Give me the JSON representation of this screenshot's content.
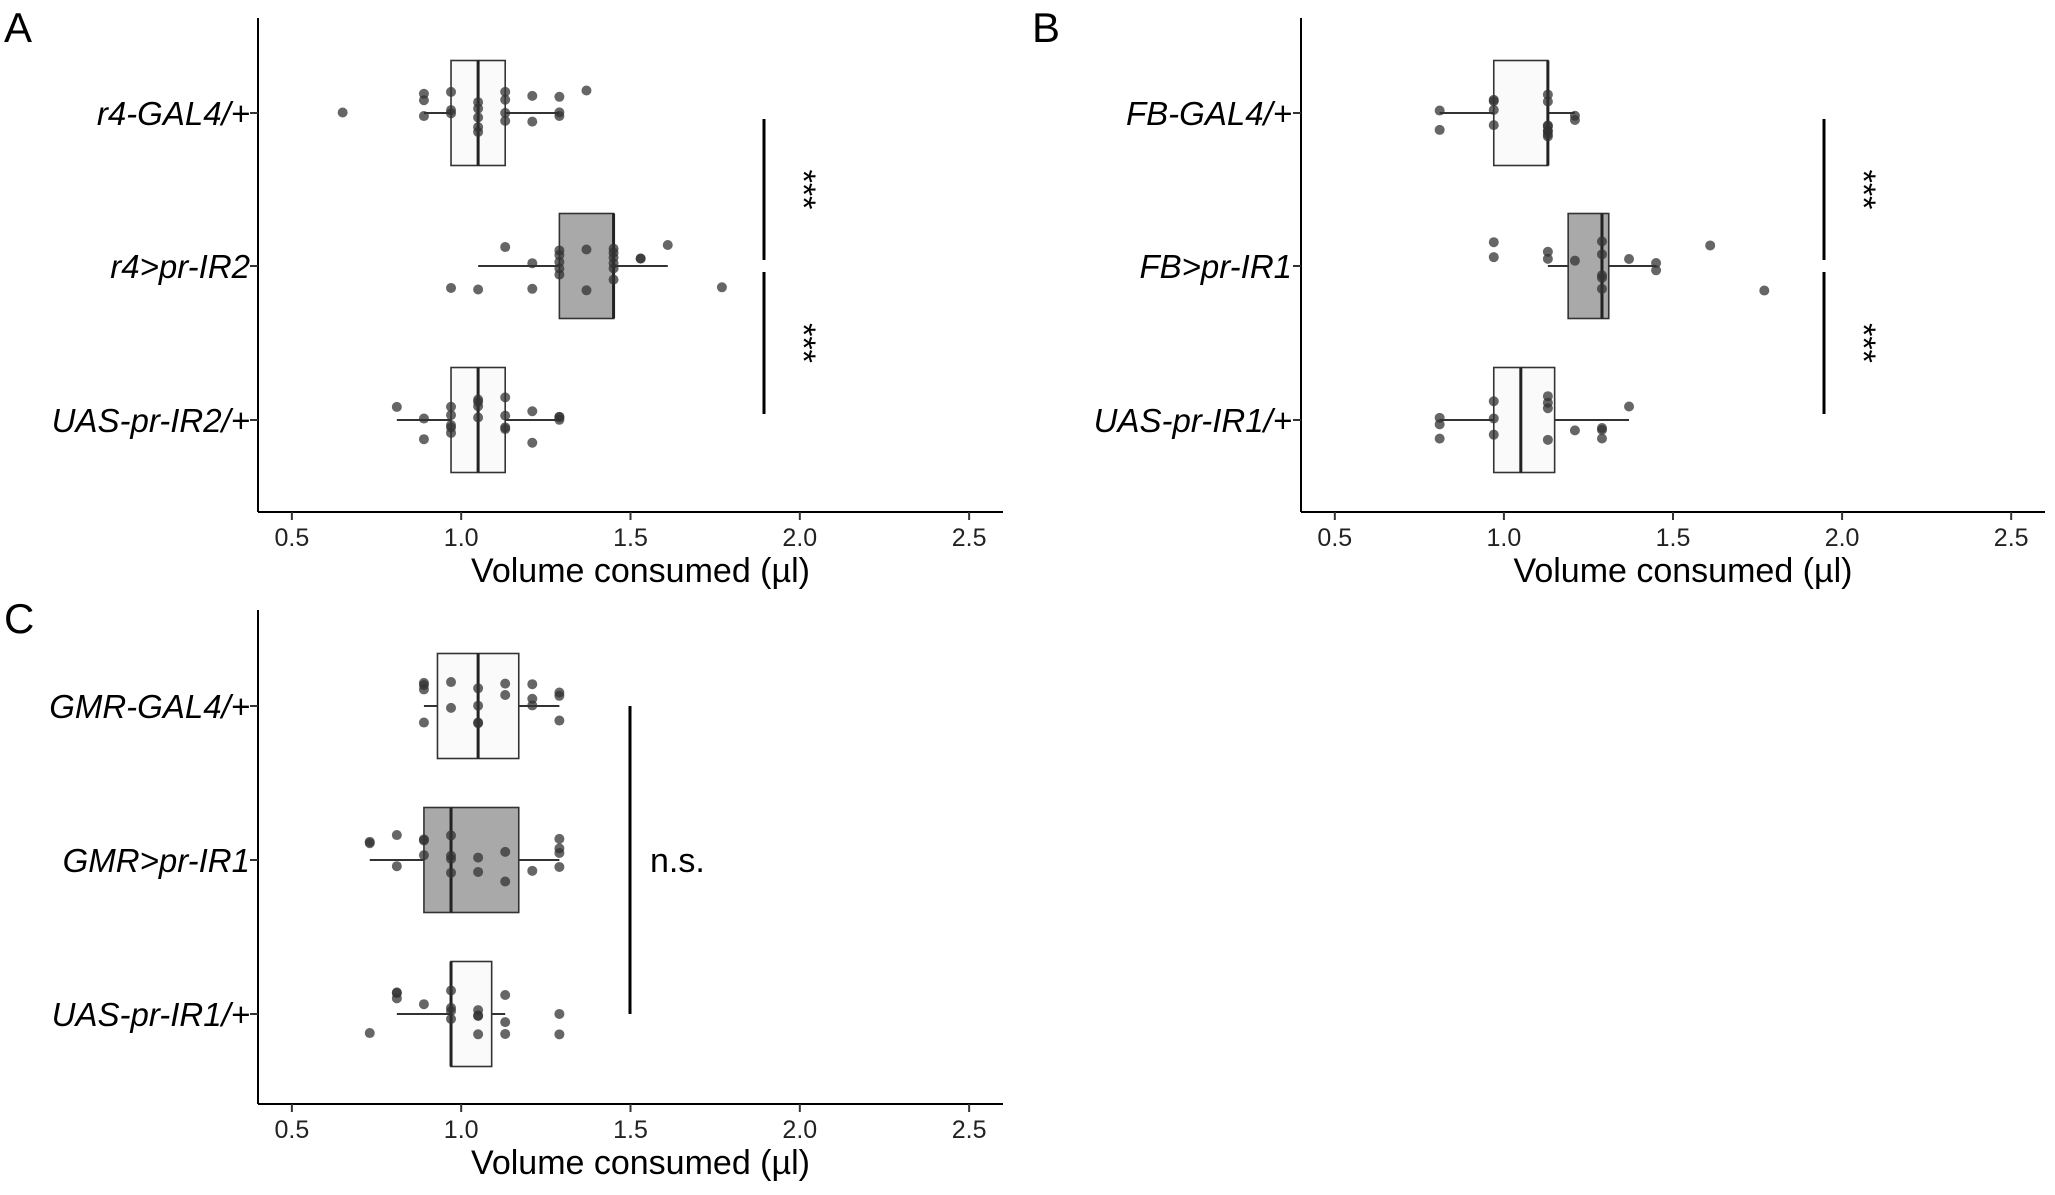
{
  "chart_data": [
    {
      "panel": "A",
      "type": "box",
      "xlabel": "Volume consumed (µl)",
      "xlim": [
        0.4,
        2.6
      ],
      "xticks": [
        0.5,
        1.0,
        1.5,
        2.0,
        2.5
      ],
      "xtick_labels": [
        "0.5",
        "1.0",
        "1.5",
        "2.0",
        "2.5"
      ],
      "grid": false,
      "groups": [
        {
          "label": "r4-GAL4/+",
          "fill": "#fafafa",
          "q1": 0.97,
          "median": 1.05,
          "q3": 1.13,
          "whisker_low": 0.89,
          "whisker_high": 1.29,
          "points": [
            0.65,
            0.89,
            0.89,
            0.89,
            0.97,
            0.97,
            0.97,
            1.05,
            1.05,
            1.05,
            1.05,
            1.05,
            1.13,
            1.13,
            1.13,
            1.13,
            1.21,
            1.21,
            1.29,
            1.29,
            1.29,
            1.37
          ]
        },
        {
          "label": "r4>pr-IR2",
          "fill": "#a9a9a9",
          "q1": 1.29,
          "median": 1.45,
          "q3": 1.45,
          "whisker_low": 1.05,
          "whisker_high": 1.61,
          "points": [
            0.97,
            1.05,
            1.13,
            1.21,
            1.21,
            1.29,
            1.29,
            1.29,
            1.29,
            1.29,
            1.37,
            1.37,
            1.45,
            1.45,
            1.45,
            1.45,
            1.45,
            1.45,
            1.53,
            1.53,
            1.61,
            1.77
          ]
        },
        {
          "label": "UAS-pr-IR2/+",
          "fill": "#fafafa",
          "q1": 0.97,
          "median": 1.05,
          "q3": 1.13,
          "whisker_low": 0.81,
          "whisker_high": 1.29,
          "points": [
            0.81,
            0.89,
            0.89,
            0.97,
            0.97,
            0.97,
            0.97,
            0.97,
            1.05,
            1.05,
            1.05,
            1.05,
            1.13,
            1.13,
            1.13,
            1.13,
            1.21,
            1.21,
            1.29,
            1.29,
            1.29
          ]
        }
      ],
      "significance": [
        {
          "from": 0,
          "to": 1,
          "label": "***"
        },
        {
          "from": 1,
          "to": 2,
          "label": "***"
        }
      ]
    },
    {
      "panel": "B",
      "type": "box",
      "xlabel": "Volume consumed (µl)",
      "xlim": [
        0.4,
        2.6
      ],
      "xticks": [
        0.5,
        1.0,
        1.5,
        2.0,
        2.5
      ],
      "xtick_labels": [
        "0.5",
        "1.0",
        "1.5",
        "2.0",
        "2.5"
      ],
      "grid": false,
      "groups": [
        {
          "label": "FB-GAL4/+",
          "fill": "#fafafa",
          "q1": 0.97,
          "median": 1.13,
          "q3": 1.13,
          "whisker_low": 0.81,
          "whisker_high": 1.21,
          "points": [
            0.81,
            0.81,
            0.97,
            0.97,
            0.97,
            0.97,
            1.13,
            1.13,
            1.13,
            1.13,
            1.13,
            1.13,
            1.13,
            1.13,
            1.21,
            1.21
          ]
        },
        {
          "label": "FB>pr-IR1",
          "fill": "#a9a9a9",
          "q1": 1.19,
          "median": 1.29,
          "q3": 1.31,
          "whisker_low": 1.13,
          "whisker_high": 1.45,
          "points": [
            0.97,
            0.97,
            1.13,
            1.13,
            1.21,
            1.29,
            1.29,
            1.29,
            1.29,
            1.29,
            1.37,
            1.45,
            1.45,
            1.61,
            1.77
          ]
        },
        {
          "label": "UAS-pr-IR1/+",
          "fill": "#fafafa",
          "q1": 0.97,
          "median": 1.05,
          "q3": 1.15,
          "whisker_low": 0.81,
          "whisker_high": 1.37,
          "points": [
            0.81,
            0.81,
            0.81,
            0.97,
            0.97,
            0.97,
            1.13,
            1.13,
            1.13,
            1.13,
            1.21,
            1.29,
            1.29,
            1.29,
            1.37
          ]
        }
      ],
      "significance": [
        {
          "from": 0,
          "to": 1,
          "label": "***"
        },
        {
          "from": 1,
          "to": 2,
          "label": "***"
        }
      ]
    },
    {
      "panel": "C",
      "type": "box",
      "xlabel": "Volume consumed (µl)",
      "xlim": [
        0.4,
        2.6
      ],
      "xticks": [
        0.5,
        1.0,
        1.5,
        2.0,
        2.5
      ],
      "xtick_labels": [
        "0.5",
        "1.0",
        "1.5",
        "2.0",
        "2.5"
      ],
      "grid": false,
      "groups": [
        {
          "label": "GMR-GAL4/+",
          "fill": "#fafafa",
          "q1": 0.93,
          "median": 1.05,
          "q3": 1.17,
          "whisker_low": 0.89,
          "whisker_high": 1.29,
          "points": [
            0.89,
            0.89,
            0.89,
            0.89,
            0.97,
            0.97,
            1.05,
            1.05,
            1.05,
            1.05,
            1.13,
            1.13,
            1.21,
            1.21,
            1.21,
            1.29,
            1.29,
            1.29
          ]
        },
        {
          "label": "GMR>pr-IR1",
          "fill": "#a9a9a9",
          "q1": 0.89,
          "median": 0.97,
          "q3": 1.17,
          "whisker_low": 0.73,
          "whisker_high": 1.29,
          "points": [
            0.73,
            0.73,
            0.81,
            0.81,
            0.89,
            0.89,
            0.89,
            0.97,
            0.97,
            0.97,
            0.97,
            1.05,
            1.05,
            1.13,
            1.13,
            1.21,
            1.29,
            1.29,
            1.29,
            1.29
          ]
        },
        {
          "label": "UAS-pr-IR1/+",
          "fill": "#fafafa",
          "q1": 0.97,
          "median": 0.97,
          "q3": 1.09,
          "whisker_low": 0.81,
          "whisker_high": 1.13,
          "points": [
            0.73,
            0.81,
            0.81,
            0.81,
            0.89,
            0.97,
            0.97,
            0.97,
            0.97,
            1.05,
            1.05,
            1.05,
            1.05,
            1.13,
            1.13,
            1.13,
            1.29,
            1.29
          ]
        }
      ],
      "significance": [
        {
          "from": 0,
          "to": 2,
          "label": "n.s."
        }
      ]
    }
  ]
}
